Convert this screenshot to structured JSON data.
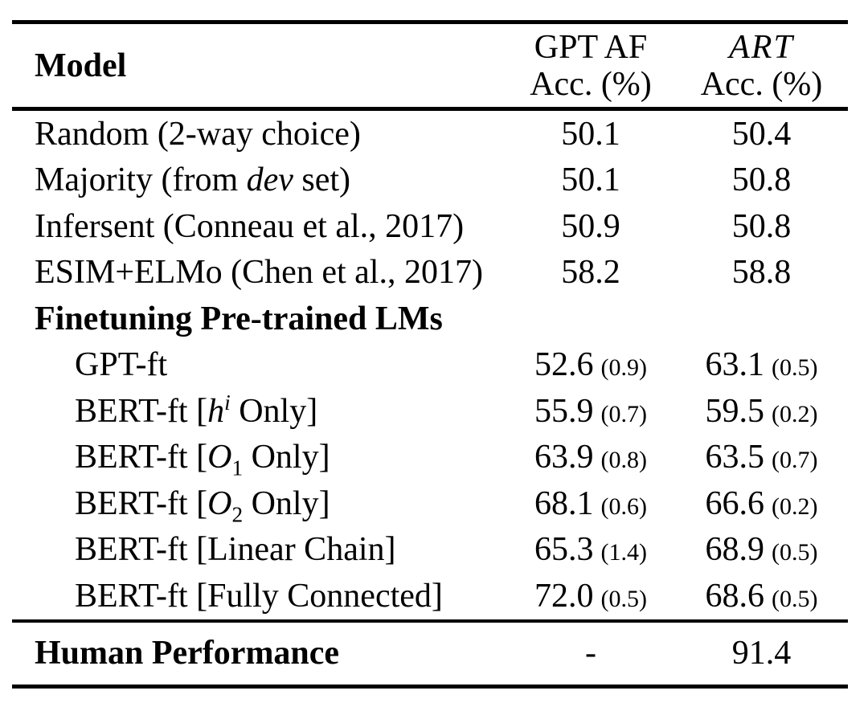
{
  "table": {
    "columns": {
      "model": "Model",
      "col1": {
        "line1": "GPT AF",
        "line2": "Acc. (%)"
      },
      "col2": {
        "line1": "ART",
        "line2": "Acc. (%)"
      }
    },
    "rows": [
      {
        "model": [
          {
            "text": "Random (2-way choice)"
          }
        ],
        "col1": {
          "value": "50.1"
        },
        "col2": {
          "value": "50.4"
        }
      },
      {
        "model": [
          {
            "text": "Majority (from "
          },
          {
            "text": "dev",
            "style": "italic"
          },
          {
            "text": " set)"
          }
        ],
        "col1": {
          "value": "50.1"
        },
        "col2": {
          "value": "50.8"
        }
      },
      {
        "model": [
          {
            "text": "Infersent (Conneau et al., 2017)"
          }
        ],
        "col1": {
          "value": "50.9"
        },
        "col2": {
          "value": "50.8"
        }
      },
      {
        "model": [
          {
            "text": "ESIM+ELMo (Chen et al., 2017)"
          }
        ],
        "col1": {
          "value": "58.2"
        },
        "col2": {
          "value": "58.8"
        }
      },
      {
        "model": [
          {
            "text": "Finetuning Pre-trained LMs",
            "style": "bold"
          }
        ],
        "section": true,
        "col1": {},
        "col2": {}
      },
      {
        "model": [
          {
            "text": "GPT-ft"
          }
        ],
        "indent": true,
        "col1": {
          "value": "52.6",
          "std": "(0.9)"
        },
        "col2": {
          "value": "63.1",
          "std": "(0.5)"
        }
      },
      {
        "model": [
          {
            "text": "BERT-ft ["
          },
          {
            "text": "h",
            "style": "italic"
          },
          {
            "text": "i",
            "style": "sup-italic"
          },
          {
            "text": " Only]"
          }
        ],
        "indent": true,
        "col1": {
          "value": "55.9",
          "std": "(0.7)"
        },
        "col2": {
          "value": "59.5",
          "std": "(0.2)"
        }
      },
      {
        "model": [
          {
            "text": "BERT-ft ["
          },
          {
            "text": "O",
            "style": "italic"
          },
          {
            "text": "1",
            "style": "sub"
          },
          {
            "text": " Only]"
          }
        ],
        "indent": true,
        "col1": {
          "value": "63.9",
          "std": "(0.8)"
        },
        "col2": {
          "value": "63.5",
          "std": "(0.7)"
        }
      },
      {
        "model": [
          {
            "text": "BERT-ft ["
          },
          {
            "text": "O",
            "style": "italic"
          },
          {
            "text": "2",
            "style": "sub"
          },
          {
            "text": " Only]"
          }
        ],
        "indent": true,
        "col1": {
          "value": "68.1",
          "std": "(0.6)"
        },
        "col2": {
          "value": "66.6",
          "std": "(0.2)"
        }
      },
      {
        "model": [
          {
            "text": "BERT-ft [Linear Chain]"
          }
        ],
        "indent": true,
        "col1": {
          "value": "65.3",
          "std": "(1.4)"
        },
        "col2": {
          "value": "68.9",
          "std": "(0.5)"
        }
      },
      {
        "model": [
          {
            "text": "BERT-ft [Fully Connected]"
          }
        ],
        "indent": true,
        "col1": {
          "value": "72.0",
          "std": "(0.5)"
        },
        "col2": {
          "value": "68.6",
          "std": "(0.5)"
        }
      }
    ],
    "footer": {
      "model": "Human Performance",
      "col1": {
        "value": "-"
      },
      "col2": {
        "value": "91.4"
      }
    },
    "colors": {
      "text": "#000000",
      "background": "#ffffff",
      "rule": "#000000"
    }
  }
}
